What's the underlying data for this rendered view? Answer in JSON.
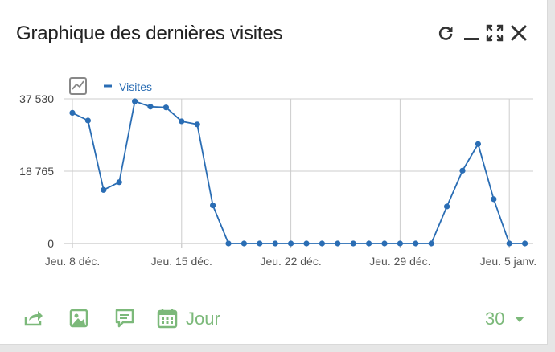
{
  "widget": {
    "title": "Graphique des dernières visites",
    "controls": [
      "refresh-icon",
      "minimize-icon",
      "maximize-icon",
      "close-icon"
    ]
  },
  "footer": {
    "icons": [
      "export-icon",
      "image-icon",
      "annotation-icon",
      "calendar-icon"
    ],
    "period_label": "Jour",
    "count_value": "30",
    "accent_color": "#7cb97a"
  },
  "chart_data": {
    "type": "line",
    "legend": "top-left",
    "grid": true,
    "series": [
      {
        "name": "Visites",
        "color": "#2a6db4",
        "x": [
          "2022-12-08",
          "2022-12-09",
          "2022-12-10",
          "2022-12-11",
          "2022-12-12",
          "2022-12-13",
          "2022-12-14",
          "2022-12-15",
          "2022-12-16",
          "2022-12-17",
          "2022-12-18",
          "2022-12-19",
          "2022-12-20",
          "2022-12-21",
          "2022-12-22",
          "2022-12-23",
          "2022-12-24",
          "2022-12-25",
          "2022-12-26",
          "2022-12-27",
          "2022-12-28",
          "2022-12-29",
          "2022-12-30",
          "2022-12-31",
          "2023-01-01",
          "2023-01-02",
          "2023-01-03",
          "2023-01-04",
          "2023-01-05",
          "2023-01-06"
        ],
        "values": [
          33900,
          31900,
          13900,
          15900,
          36900,
          35500,
          35300,
          31700,
          30900,
          9900,
          0,
          0,
          0,
          0,
          0,
          0,
          0,
          0,
          0,
          0,
          0,
          0,
          0,
          0,
          9600,
          18900,
          25800,
          11500,
          0,
          0
        ]
      }
    ],
    "yticks": [
      "37 530",
      "18 765",
      "0"
    ],
    "ytick_values": [
      37530,
      18765,
      0
    ],
    "ylim": [
      0,
      37530
    ],
    "xticks": [
      "Jeu. 8 déc.",
      "Jeu. 15 déc.",
      "Jeu. 22 déc.",
      "Jeu. 29 déc.",
      "Jeu. 5 janv."
    ],
    "xtick_dates": [
      "2022-12-08",
      "2022-12-15",
      "2022-12-22",
      "2022-12-29",
      "2023-01-05"
    ]
  }
}
